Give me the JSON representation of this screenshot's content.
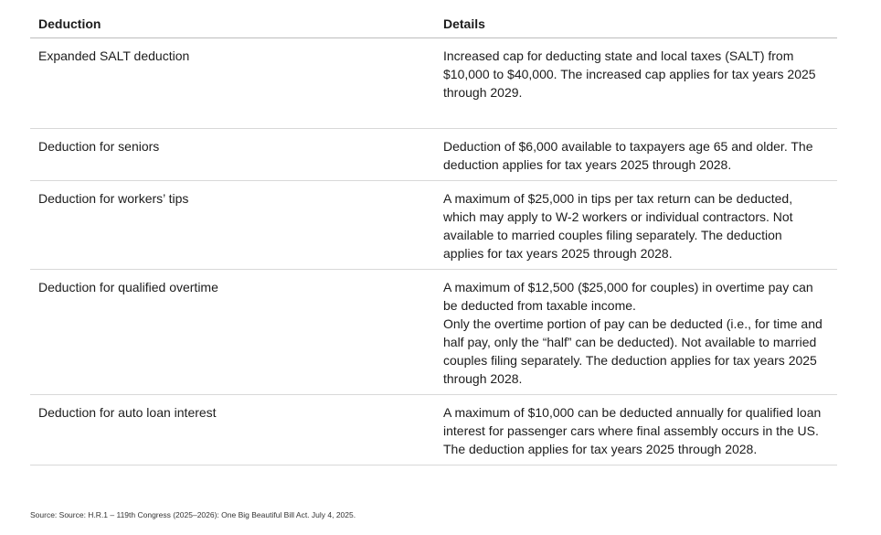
{
  "table": {
    "columns": [
      {
        "label": "Deduction"
      },
      {
        "label": "Details"
      }
    ],
    "rows": [
      {
        "deduction": "Expanded SALT deduction",
        "details": "Increased cap for deducting state and local taxes (SALT) from $10,000 to $40,000. The increased cap applies for tax years 2025 through 2029."
      },
      {
        "deduction": "Deduction for seniors",
        "details": "Deduction of $6,000 available to taxpayers age 65 and older. The deduction applies for tax years 2025 through 2028."
      },
      {
        "deduction": "Deduction for workers’ tips",
        "details": "A maximum of $25,000 in tips per tax return can be deducted, which may apply to W-2 workers or individual contractors. Not available to married couples filing separately. The deduction applies for tax years 2025 through 2028."
      },
      {
        "deduction": "Deduction for qualified overtime",
        "details": "A maximum of $12,500 ($25,000 for couples) in overtime pay can be deducted from taxable income.\nOnly the overtime portion of pay can be deducted (i.e., for time and half pay, only the “half” can be deducted). Not available to married couples filing separately. The deduction applies for tax years 2025 through 2028."
      },
      {
        "deduction": "Deduction for auto loan interest",
        "details": "A maximum of $10,000 can be deducted annually for qualified loan interest for passenger cars where final assembly occurs in the US. The deduction applies for tax years 2025 through 2028."
      }
    ]
  },
  "source": "Source: Source: H.R.1 – 119th Congress (2025–2026): One Big Beautiful Bill Act. July 4, 2025."
}
